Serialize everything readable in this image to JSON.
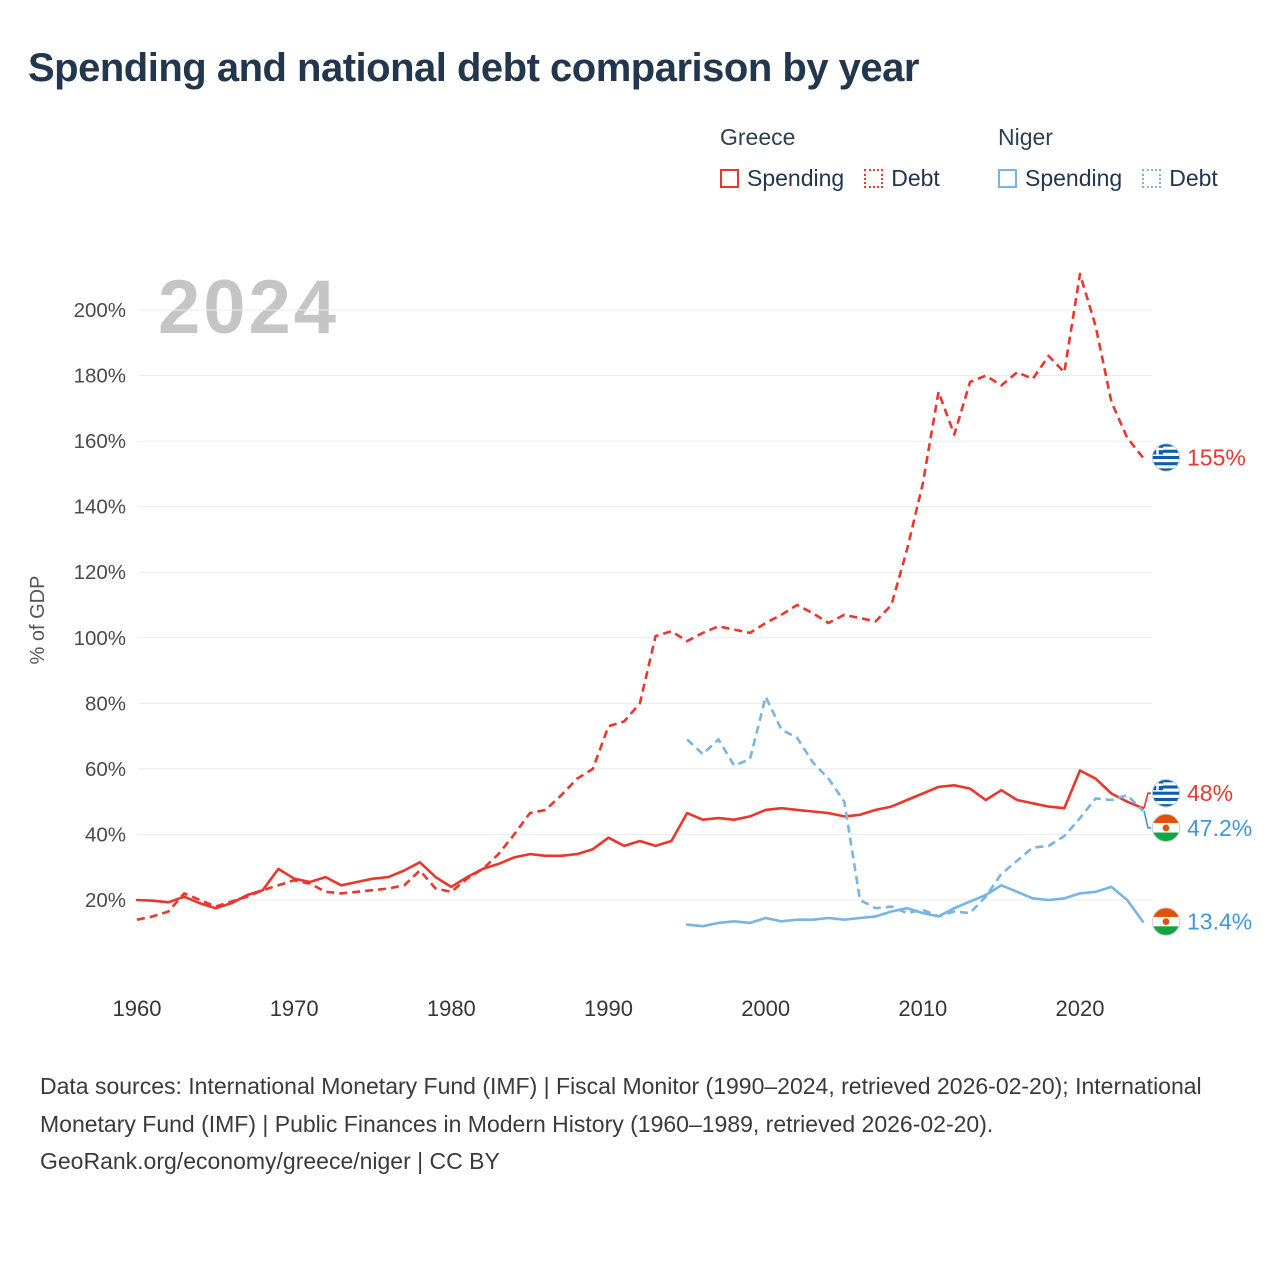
{
  "title": "Spending and national debt comparison by year",
  "watermark": "2024",
  "legend": {
    "groups": [
      {
        "name": "Greece",
        "items": [
          {
            "label": "Spending",
            "style": "solid",
            "color": "#e8382d"
          },
          {
            "label": "Debt",
            "style": "dotted",
            "color": "#e8382d"
          }
        ]
      },
      {
        "name": "Niger",
        "items": [
          {
            "label": "Spending",
            "style": "solid",
            "color": "#78b4e4"
          },
          {
            "label": "Debt",
            "style": "dotted",
            "color": "#78b4e4"
          }
        ]
      }
    ]
  },
  "colors": {
    "greece": "#e8382d",
    "niger_line": "#78b4e4",
    "niger_label": "#3f97dd",
    "grid": "#ebebf1",
    "watermark": "#c5c5c5",
    "title": "#22364e"
  },
  "chart_data": {
    "type": "line",
    "title": "Spending and national debt comparison by year",
    "xlabel": "",
    "ylabel": "% of GDP",
    "y_ticks": [
      20,
      40,
      60,
      80,
      100,
      120,
      140,
      160,
      180,
      200
    ],
    "y_tick_suffix": "%",
    "x_ticks": [
      1960,
      1970,
      1980,
      1990,
      2000,
      2010,
      2020
    ],
    "xlim": [
      1958,
      2026.5
    ],
    "ylim": [
      8,
      215
    ],
    "grid": "horizontal",
    "legend_position": "top-right",
    "series": [
      {
        "name": "Greece Spending",
        "color": "#e8382d",
        "dash": "solid",
        "start_year": 1960,
        "values": [
          20,
          19.8,
          19.3,
          21,
          19,
          17.5,
          19,
          21.5,
          23,
          29.5,
          26.5,
          25.5,
          27,
          24.5,
          25.5,
          26.5,
          27,
          29,
          31.5,
          27,
          24,
          27,
          29.5,
          31,
          33,
          34,
          33.5,
          33.5,
          34,
          35.5,
          39,
          36.5,
          38,
          36.5,
          38,
          46.5,
          44.5,
          45,
          44.5,
          45.5,
          47.5,
          48,
          47.5,
          47,
          46.5,
          45.5,
          46,
          47.5,
          48.5,
          50.5,
          52.5,
          54.5,
          55,
          54,
          50.5,
          53.5,
          50.5,
          49.5,
          48.5,
          48,
          59.5,
          57,
          52.5,
          50,
          48
        ]
      },
      {
        "name": "Greece Debt",
        "color": "#e8382d",
        "dash": "dashed",
        "start_year": 1960,
        "values": [
          14,
          15,
          16.5,
          22,
          20,
          18,
          19.5,
          21,
          23,
          24.5,
          26,
          25,
          22.5,
          22,
          22.5,
          23,
          23.5,
          24.5,
          29,
          23.5,
          22.5,
          26.5,
          29.5,
          34,
          40,
          46.5,
          47.5,
          52,
          57,
          60,
          73,
          74.5,
          80,
          100.5,
          102,
          99,
          101.5,
          103.5,
          102.5,
          101.5,
          104.5,
          107,
          110,
          107.5,
          104.5,
          107,
          106,
          105,
          110,
          127,
          147,
          175,
          162,
          178,
          180,
          177,
          181,
          179,
          186,
          181,
          211,
          195,
          172,
          161,
          155
        ]
      },
      {
        "name": "Niger Spending",
        "color": "#78b4e4",
        "dash": "solid",
        "start_year": 1995,
        "values": [
          12.5,
          12,
          13,
          13.5,
          13,
          14.5,
          13.5,
          14,
          14,
          14.5,
          14,
          14.5,
          15,
          16.5,
          17.5,
          16,
          15,
          17.5,
          19.5,
          21.5,
          24.5,
          22.5,
          20.5,
          20,
          20.5,
          22,
          22.5,
          24,
          20,
          13.4
        ]
      },
      {
        "name": "Niger Debt",
        "color": "#78b4e4",
        "dash": "dashed",
        "start_year": 1995,
        "values": [
          69,
          64.5,
          69,
          61,
          63,
          82,
          72,
          69.5,
          62,
          57,
          50,
          20,
          17.5,
          18,
          16,
          17,
          15,
          16.5,
          16,
          21,
          28,
          32,
          36,
          36.5,
          39.5,
          45,
          51,
          50.5,
          52,
          47.2
        ]
      }
    ],
    "end_labels": [
      {
        "text": "155%",
        "flag": "greece",
        "color": "#e8382d",
        "value": 155,
        "dy": 0
      },
      {
        "text": "48%",
        "flag": "greece",
        "color": "#e8382d",
        "value": 48,
        "dy": -15
      },
      {
        "text": "47.2%",
        "flag": "niger",
        "color": "#3f97dd",
        "value": 47.2,
        "dy": 17
      },
      {
        "text": "13.4%",
        "flag": "niger",
        "color": "#3f97dd",
        "value": 13.4,
        "dy": 0
      }
    ]
  },
  "footer": {
    "sources": "Data sources: International Monetary Fund (IMF) | Fiscal Monitor (1990–2024, retrieved 2026-02-20); International Monetary Fund (IMF) | Public Finances in Modern History (1960–1989, retrieved 2026-02-20).",
    "attribution": "GeoRank.org/economy/greece/niger | CC BY"
  }
}
